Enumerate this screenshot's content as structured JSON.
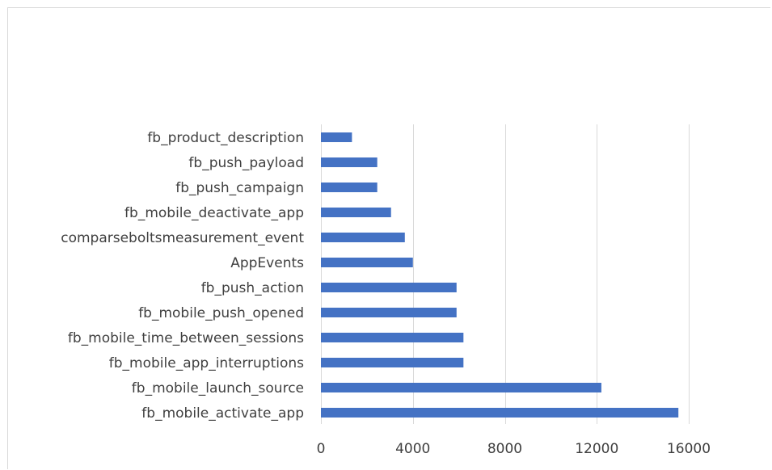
{
  "chart_data": {
    "type": "bar",
    "orientation": "horizontal",
    "categories": [
      "fb_product_description",
      "fb_push_payload",
      "fb_push_campaign",
      "fb_mobile_deactivate_app",
      "comparseboltsmeasurement_event",
      "AppEvents",
      "fb_push_action",
      "fb_mobile_push_opened",
      "fb_mobile_time_between_sessions",
      "fb_mobile_app_interruptions",
      "fb_mobile_launch_source",
      "fb_mobile_activate_app"
    ],
    "values": [
      1350,
      2450,
      2450,
      3050,
      3650,
      4000,
      5900,
      5900,
      6200,
      6200,
      12200,
      15550
    ],
    "x_ticks": [
      "0",
      "4000",
      "8000",
      "12000",
      "16000"
    ],
    "xlim": [
      0,
      16000
    ],
    "grid": true,
    "bar_color": "#4472c4",
    "gridline_color": "#d9d9d9",
    "text_color": "#404040",
    "legend": "none"
  }
}
